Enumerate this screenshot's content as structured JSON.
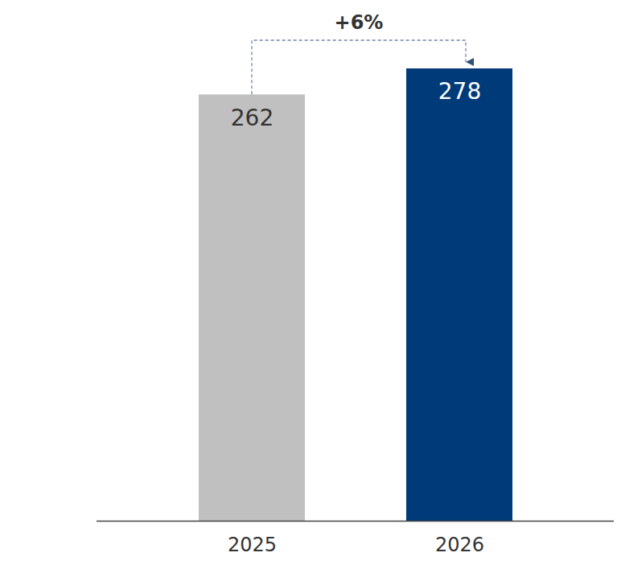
{
  "chart_data": {
    "type": "bar",
    "categories": [
      "2025",
      "2026"
    ],
    "values": [
      262,
      278
    ],
    "colors": [
      "#c0c0c0",
      "#003a78"
    ],
    "ylim": [
      0,
      278
    ],
    "tick_labels": "x",
    "data_labels": true,
    "annotation": "+6%"
  }
}
